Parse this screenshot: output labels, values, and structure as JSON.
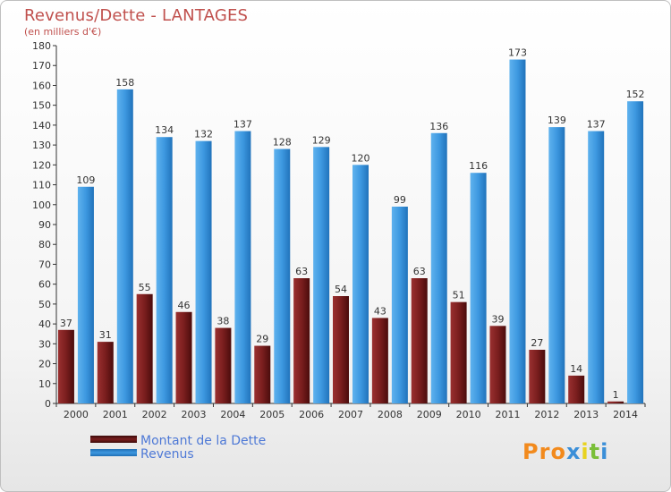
{
  "title": "Revenus/Dette - LANTAGES",
  "subtitle": "(en milliers d'€)",
  "logo_text": "Proxiti",
  "colors": {
    "debt": "#7a1e1e",
    "revenue": "#3d98e0",
    "title": "#c0504d",
    "legend_text": "#4e79d6"
  },
  "chart_data": {
    "type": "bar",
    "categories": [
      "2000",
      "2001",
      "2002",
      "2003",
      "2004",
      "2005",
      "2006",
      "2007",
      "2008",
      "2009",
      "2010",
      "2011",
      "2012",
      "2013",
      "2014"
    ],
    "series": [
      {
        "name": "Montant de la Dette",
        "values": [
          37,
          31,
          55,
          46,
          38,
          29,
          63,
          54,
          43,
          63,
          51,
          39,
          27,
          14,
          1
        ]
      },
      {
        "name": "Revenus",
        "values": [
          109,
          158,
          134,
          132,
          137,
          128,
          129,
          120,
          99,
          136,
          116,
          173,
          139,
          137,
          152
        ]
      }
    ],
    "ylim": [
      0,
      180
    ],
    "ytick_step": 10,
    "grid": false,
    "legend_position": "bottom-left"
  }
}
